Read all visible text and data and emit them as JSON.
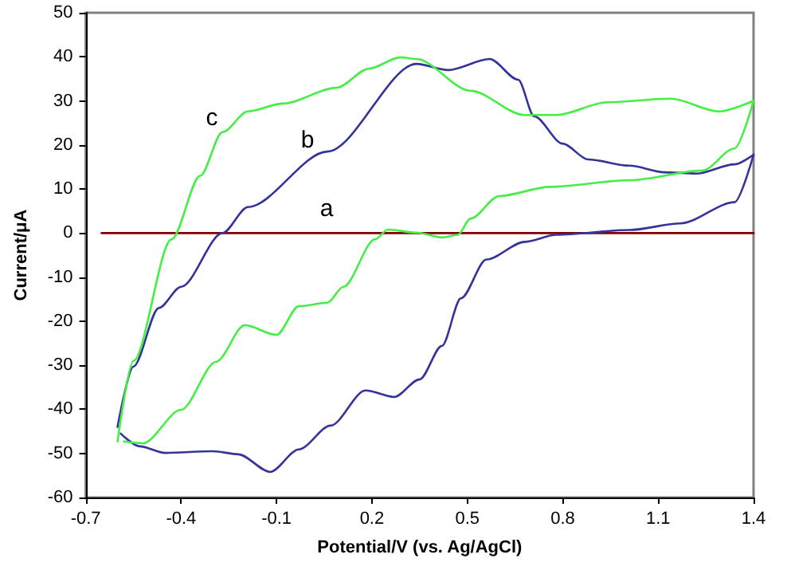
{
  "chart_data": {
    "type": "line",
    "xlabel": "Potential/V (vs. Ag/AgCl)",
    "ylabel": "Current/μA",
    "xlim": [
      -0.7,
      1.4
    ],
    "xticks": [
      -0.7,
      -0.4,
      -0.1,
      0.2,
      0.5,
      0.8,
      1.1,
      1.4
    ],
    "ylim": [
      -60,
      50
    ],
    "yticks": [
      -60,
      -50,
      -40,
      -30,
      -20,
      -10,
      0,
      10,
      20,
      30,
      40,
      50
    ],
    "marker": "none",
    "line_style": "solid",
    "annotations": [
      "a",
      "b",
      "c"
    ],
    "series": [
      {
        "color": "#800000",
        "x": [
          -0.65,
          1.4
        ],
        "values": [
          0,
          0
        ]
      },
      {
        "color": "#333399",
        "x": [
          -0.6,
          -0.55,
          -0.47,
          -0.4,
          -0.27,
          -0.19,
          0.06,
          0.34,
          0.44,
          0.57,
          0.66,
          0.71,
          0.8,
          0.88,
          1.01,
          1.12,
          1.22,
          1.34,
          1.4
        ],
        "values": [
          -44,
          -30.3,
          -17,
          -12.2,
          0,
          5.9,
          18.5,
          38.4,
          37,
          39.5,
          34.8,
          26.5,
          20.3,
          16.7,
          15.3,
          13.8,
          13.5,
          15.6,
          17.8
        ]
      },
      {
        "color": "#333399",
        "x": [
          -0.59,
          -0.53,
          -0.45,
          -0.3,
          -0.22,
          -0.12,
          -0.03,
          0.07,
          0.18,
          0.27,
          0.35,
          0.42,
          0.48,
          0.56,
          0.68,
          0.78,
          1.01,
          1.17,
          1.34,
          1.4
        ],
        "values": [
          -45.5,
          -48.4,
          -49.9,
          -49.5,
          -50.2,
          -54.2,
          -49.1,
          -43.7,
          -35.7,
          -37.2,
          -33.2,
          -25.6,
          -14.8,
          -6,
          -2,
          -0.4,
          0.7,
          2.2,
          7,
          17.8
        ]
      },
      {
        "color": "#44ee44",
        "x": [
          -0.6,
          -0.55,
          -0.43,
          -0.34,
          -0.27,
          -0.19,
          -0.08,
          0.09,
          0.19,
          0.29,
          0.34,
          0.51,
          0.68,
          0.78,
          0.94,
          1.14,
          1.29,
          1.4
        ],
        "values": [
          -47.3,
          -29,
          -1.4,
          13,
          22.9,
          27.6,
          29.4,
          33,
          37.3,
          39.9,
          39.5,
          32.3,
          26.8,
          26.8,
          29.7,
          30.5,
          27.6,
          30
        ]
      },
      {
        "color": "#44ee44",
        "x": [
          -0.58,
          -0.52,
          -0.4,
          -0.29,
          -0.2,
          -0.1,
          -0.03,
          0.06,
          0.11,
          0.21,
          0.25,
          0.34,
          0.42,
          0.47,
          0.51,
          0.6,
          0.76,
          1.01,
          1.24,
          1.34,
          1.4
        ],
        "values": [
          -47.3,
          -47.7,
          -40.1,
          -29.2,
          -20.9,
          -23.1,
          -16.6,
          -15.8,
          -12.2,
          -1.4,
          0.8,
          0.1,
          -1,
          -0.4,
          3.3,
          8.4,
          10.5,
          12,
          14.2,
          19.2,
          30
        ]
      }
    ]
  }
}
